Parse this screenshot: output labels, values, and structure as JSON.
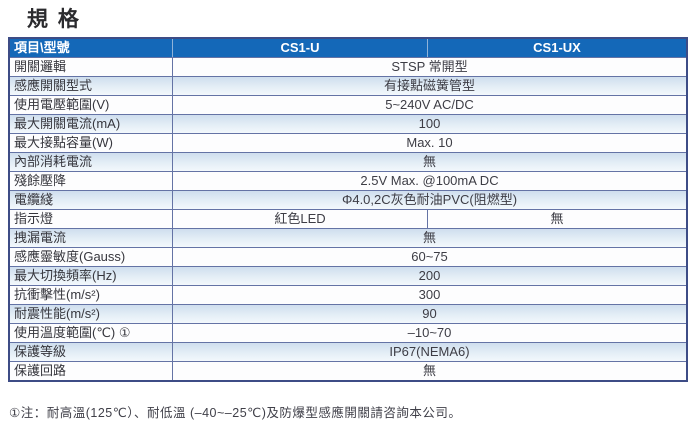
{
  "title": "規 格",
  "colors": {
    "header_bg": "#1468b8",
    "table_border": "#3d4c86",
    "row_divider": "#6473a5",
    "shade_row_top": "#cfdeee",
    "shade_row_bottom": "#f3f8fc"
  },
  "table": {
    "header": {
      "col_item": "項目\\型號",
      "col_u": "CS1-U",
      "col_ux": "CS1-UX"
    },
    "rows": [
      {
        "label": "開關邏輯",
        "value": "STSP 常開型"
      },
      {
        "label": "感應開關型式",
        "value": "有接點磁簧管型"
      },
      {
        "label": "使用電壓範圍(V)",
        "value": "5~240V AC/DC"
      },
      {
        "label": "最大開關電流(mA)",
        "value": "100"
      },
      {
        "label": "最大接點容量(W)",
        "value": "Max. 10"
      },
      {
        "label": "內部消耗電流",
        "value": "無"
      },
      {
        "label": "殘餘壓降",
        "value": "2.5V Max. @100mA DC"
      },
      {
        "label": "電纜綫",
        "value": "Φ4.0,2C灰色耐油PVC(阻燃型)"
      },
      {
        "label": "指示燈",
        "value_cs1u": "紅色LED",
        "value_cs1ux": "無"
      },
      {
        "label": "拽漏電流",
        "value": "無"
      },
      {
        "label": "感應靈敏度(Gauss)",
        "value": "60~75"
      },
      {
        "label": "最大切換頻率(Hz)",
        "value": "200"
      },
      {
        "label": "抗衝擊性(m/s²)",
        "value": "300"
      },
      {
        "label": "耐震性能(m/s²)",
        "value": "90"
      },
      {
        "label": "使用溫度範圍(℃) ①",
        "value": "–10~70"
      },
      {
        "label": "保護等級",
        "value": "IP67(NEMA6)"
      },
      {
        "label": "保護回路",
        "value": "無"
      }
    ]
  },
  "footnote": "①注：耐高溫(125℃）、耐低溫 (–40~–25℃)及防爆型感應開關請咨詢本公司。"
}
